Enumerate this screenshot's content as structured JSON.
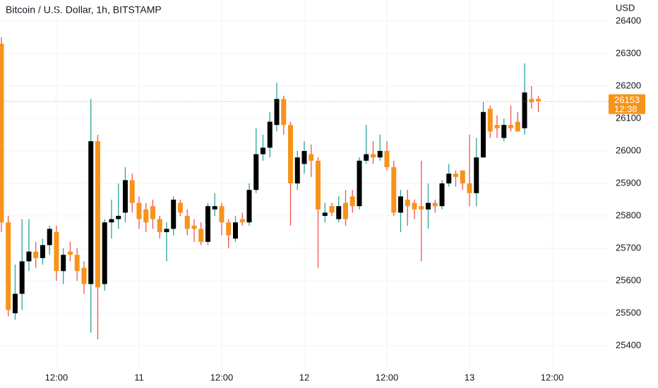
{
  "chart_data": {
    "type": "candlestick",
    "title": "Bitcoin / U.S. Dollar, 1h, BITSTAMP",
    "currency": "USD",
    "open": [
      26330,
      25780,
      25500,
      25560,
      25660,
      25690,
      25670,
      25710,
      25750,
      25630,
      25690,
      25680,
      25640,
      25590,
      26030,
      25590,
      25780,
      25790,
      25810,
      25910,
      25840,
      25820,
      25830,
      25790,
      25750,
      25760,
      25840,
      25800,
      25770,
      25760,
      25720,
      25820,
      25830,
      25780,
      25730,
      25790,
      25780,
      25880,
      25990,
      26010,
      26080,
      26160,
      26080,
      25900,
      25960,
      25990,
      25970,
      25800,
      25830,
      25790,
      25840,
      25860,
      25830,
      25970,
      25990,
      25980,
      26000,
      25950,
      25810,
      25850,
      25840,
      25830,
      25820,
      25840,
      25830,
      25900,
      25930,
      25940,
      25900,
      25870,
      25980,
      26130,
      26080,
      26040,
      26080,
      26090,
      26070,
      26160,
      26160
    ],
    "high": [
      26350,
      25800,
      25650,
      25790,
      25790,
      25720,
      25730,
      25770,
      25770,
      25700,
      25720,
      25700,
      25660,
      26160,
      26050,
      25790,
      25850,
      25900,
      25950,
      25930,
      25860,
      25840,
      25850,
      25800,
      25780,
      25860,
      25850,
      25820,
      25790,
      25780,
      25840,
      25870,
      25840,
      25790,
      25800,
      25810,
      25900,
      26070,
      26050,
      26120,
      26210,
      26170,
      26090,
      26000,
      26030,
      26020,
      25980,
      25840,
      25840,
      25860,
      25880,
      25880,
      25980,
      26080,
      26030,
      26050,
      26030,
      25970,
      25880,
      25880,
      25850,
      25970,
      25900,
      25850,
      25910,
      25960,
      25940,
      25940,
      26050,
      26040,
      26150,
      26140,
      26110,
      26100,
      26140,
      26120,
      26270,
      26200,
      26170
    ],
    "low": [
      25750,
      25490,
      25480,
      25510,
      25630,
      25640,
      25650,
      25680,
      25600,
      25590,
      25660,
      25600,
      25560,
      25440,
      25420,
      25570,
      25730,
      25760,
      25780,
      25810,
      25760,
      25750,
      25760,
      25730,
      25660,
      25740,
      25800,
      25740,
      25720,
      25710,
      25710,
      25800,
      25740,
      25700,
      25720,
      25770,
      25770,
      25870,
      25970,
      25980,
      26060,
      26050,
      25770,
      25880,
      25930,
      25920,
      25640,
      25780,
      25800,
      25780,
      25770,
      25810,
      25820,
      25960,
      25960,
      25970,
      25940,
      25800,
      25750,
      25770,
      25790,
      25660,
      25760,
      25810,
      25820,
      25890,
      25890,
      25880,
      25830,
      25830,
      25980,
      26040,
      26040,
      26030,
      26060,
      26060,
      26050,
      26130,
      26120
    ],
    "close": [
      25780,
      25510,
      25560,
      25660,
      25690,
      25670,
      25710,
      25760,
      25630,
      25680,
      25680,
      25630,
      25590,
      26030,
      25580,
      25780,
      25790,
      25800,
      25910,
      25840,
      25790,
      25780,
      25790,
      25750,
      25760,
      25850,
      25810,
      25760,
      25760,
      25720,
      25830,
      25830,
      25780,
      25740,
      25780,
      25780,
      25880,
      25990,
      26010,
      26090,
      26160,
      26080,
      25900,
      25980,
      26000,
      25970,
      25820,
      25810,
      25810,
      25830,
      25790,
      25830,
      25970,
      25990,
      25980,
      26000,
      25950,
      25810,
      25860,
      25830,
      25820,
      25820,
      25840,
      25830,
      25900,
      25930,
      25920,
      25900,
      25870,
      25980,
      26120,
      26060,
      26070,
      26080,
      26070,
      26060,
      26180,
      26150,
      26153
    ],
    "up_color": "#000000",
    "up_wick_color": "#26a69a",
    "down_color": "#f7931a",
    "down_wick_color": "#ef5350",
    "ylim": [
      25335,
      26465
    ],
    "yticks": [
      25400,
      25500,
      25600,
      25700,
      25800,
      25900,
      26000,
      26100,
      26200,
      26300,
      26400
    ],
    "xlim": [
      -0.2,
      88.2
    ],
    "xticks": [
      {
        "value": 8,
        "label": "12:00"
      },
      {
        "value": 20,
        "label": "11"
      },
      {
        "value": 32,
        "label": "12:00"
      },
      {
        "value": 44,
        "label": "12"
      },
      {
        "value": 56,
        "label": "12:00"
      },
      {
        "value": 68,
        "label": "13"
      },
      {
        "value": 80,
        "label": "12:00"
      }
    ],
    "grid": true,
    "last_price": 26153,
    "countdown": "12:38"
  }
}
